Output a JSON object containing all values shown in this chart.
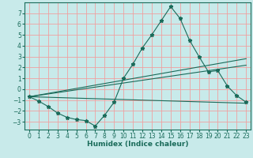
{
  "xlabel": "Humidex (Indice chaleur)",
  "bg_color": "#c8eaea",
  "grid_color": "#f0a0a0",
  "line_color": "#1a6b5a",
  "xlim": [
    -0.5,
    23.5
  ],
  "ylim": [
    -3.7,
    8.0
  ],
  "x_ticks": [
    0,
    1,
    2,
    3,
    4,
    5,
    6,
    7,
    8,
    9,
    10,
    11,
    12,
    13,
    14,
    15,
    16,
    17,
    18,
    19,
    20,
    21,
    22,
    23
  ],
  "y_ticks": [
    -3,
    -2,
    -1,
    0,
    1,
    2,
    3,
    4,
    5,
    6,
    7
  ],
  "line1_x": [
    0,
    1,
    2,
    3,
    4,
    5,
    6,
    7,
    8,
    9,
    10,
    11,
    12,
    13,
    14,
    15,
    16,
    17,
    18,
    19,
    20,
    21,
    22,
    23
  ],
  "line1_y": [
    -0.7,
    -1.1,
    -1.6,
    -2.2,
    -2.6,
    -2.8,
    -2.9,
    -3.4,
    -2.4,
    -1.2,
    1.0,
    2.3,
    3.8,
    5.0,
    6.3,
    7.6,
    6.5,
    4.5,
    3.0,
    1.6,
    1.7,
    0.3,
    -0.6,
    -1.2
  ],
  "line2_x": [
    0,
    23
  ],
  "line2_y": [
    -0.7,
    2.8
  ],
  "line3_x": [
    0,
    23
  ],
  "line3_y": [
    -0.7,
    2.2
  ],
  "line4_x": [
    0,
    23
  ],
  "line4_y": [
    -0.7,
    -1.3
  ],
  "tick_fontsize": 5.5,
  "xlabel_fontsize": 6.5
}
